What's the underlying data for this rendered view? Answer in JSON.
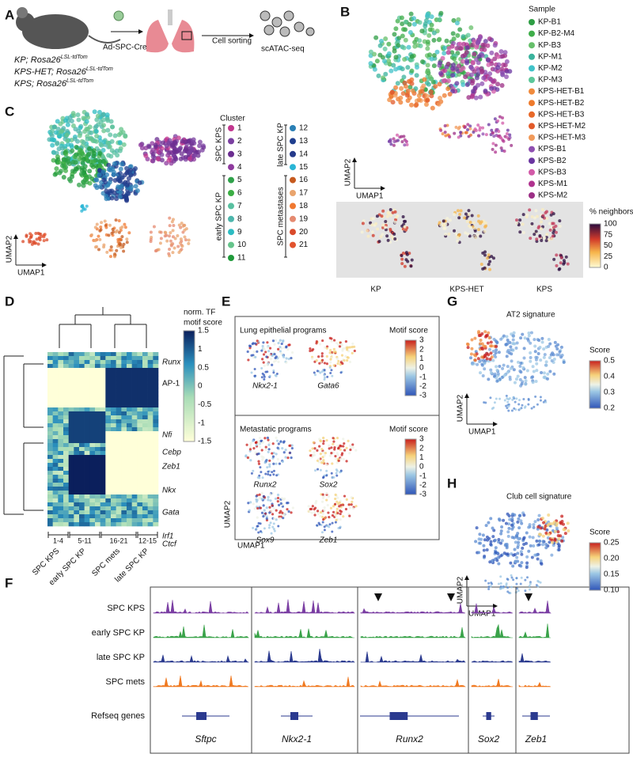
{
  "panel_labels": [
    "A",
    "B",
    "C",
    "D",
    "E",
    "F",
    "G",
    "H"
  ],
  "a": {
    "vector": "Ad-SPC-Cre",
    "step": "Cell sorting",
    "assay": "scATAC-seq",
    "genotypes": [
      {
        "name": "KP; Rosa26",
        "sup": "LSL-tdTom"
      },
      {
        "name": "KPS-HET; Rosa26",
        "sup": "LSL-tdTom"
      },
      {
        "name": "KPS; Rosa26",
        "sup": "LSL-tdTom"
      }
    ]
  },
  "b": {
    "legend_title": "Sample",
    "samples": [
      {
        "name": "KP-B1",
        "color": "#2e9e44"
      },
      {
        "name": "KP-B2-M4",
        "color": "#3fae4a"
      },
      {
        "name": "KP-B3",
        "color": "#66bf6a"
      },
      {
        "name": "KP-M1",
        "color": "#3bb39d"
      },
      {
        "name": "KP-M2",
        "color": "#40c2c8"
      },
      {
        "name": "KP-M3",
        "color": "#5cc79a"
      },
      {
        "name": "KPS-HET-B1",
        "color": "#f08a3c"
      },
      {
        "name": "KPS-HET-B2",
        "color": "#ee7a2c"
      },
      {
        "name": "KPS-HET-B3",
        "color": "#e8692a"
      },
      {
        "name": "KPS-HET-M2",
        "color": "#e25a2a"
      },
      {
        "name": "KPS-HET-M3",
        "color": "#f19a5a"
      },
      {
        "name": "KPS-B1",
        "color": "#8e4fb0"
      },
      {
        "name": "KPS-B2",
        "color": "#6a35a0"
      },
      {
        "name": "KPS-B3",
        "color": "#d25aa8"
      },
      {
        "name": "KPS-M1",
        "color": "#b0338f"
      },
      {
        "name": "KPS-M2",
        "color": "#9c2f86"
      }
    ],
    "x_axis": "UMAP1",
    "y_axis": "UMAP2",
    "neighbors_title": "% neighbors",
    "neighbors_ticks": [
      "100",
      "75",
      "50",
      "25",
      "0"
    ],
    "groups": [
      "KP",
      "KPS-HET",
      "KPS"
    ]
  },
  "c": {
    "legend_title": "Cluster",
    "clusters": [
      {
        "label": "1",
        "color": "#c2378f"
      },
      {
        "label": "2",
        "color": "#7a3fa0"
      },
      {
        "label": "3",
        "color": "#6b2d90"
      },
      {
        "label": "4",
        "color": "#8e3a9e"
      },
      {
        "label": "5",
        "color": "#2fa14a"
      },
      {
        "label": "6",
        "color": "#3cae44"
      },
      {
        "label": "7",
        "color": "#58c0a0"
      },
      {
        "label": "8",
        "color": "#4db6ac"
      },
      {
        "label": "9",
        "color": "#2dbcc2"
      },
      {
        "label": "10",
        "color": "#65c48b"
      },
      {
        "label": "11",
        "color": "#1f9a3a"
      },
      {
        "label": "12",
        "color": "#2a7fb5"
      },
      {
        "label": "13",
        "color": "#1f3f8f"
      },
      {
        "label": "14",
        "color": "#243a8a"
      },
      {
        "label": "15",
        "color": "#29b5d5"
      },
      {
        "label": "16",
        "color": "#c65a1e"
      },
      {
        "label": "17",
        "color": "#e9a46d"
      },
      {
        "label": "18",
        "color": "#f07830"
      },
      {
        "label": "19",
        "color": "#e58a70"
      },
      {
        "label": "20",
        "color": "#d94b2b"
      },
      {
        "label": "21",
        "color": "#e2532e"
      }
    ],
    "groups": [
      "SPC KPS",
      "early SPC KP",
      "late SPC KP",
      "SPC metastases"
    ],
    "x_axis": "UMAP1",
    "y_axis": "UMAP2"
  },
  "d": {
    "colorbar_title": [
      "norm. TF",
      "motif score"
    ],
    "colorbar_ticks": [
      "1.5",
      "1",
      "0.5",
      "0",
      "-0.5",
      "-1",
      "-1.5"
    ],
    "rows": [
      "Runx",
      "AP-1",
      "Nfi",
      "Cebp",
      "Zeb1",
      "Nkx",
      "Gata",
      "Irf1",
      "Ctcf"
    ],
    "column_ranges": [
      "1-4",
      "5-11",
      "16-21",
      "12-15"
    ],
    "column_groups": [
      "SPC KPS",
      "early SPC KP",
      "SPC mets",
      "late SPC KP"
    ]
  },
  "e": {
    "sections": [
      {
        "title": "Lung epithelial programs",
        "legend_title": "Motif score",
        "ticks": [
          "3",
          "2",
          "1",
          "0",
          "-1",
          "-2",
          "-3"
        ],
        "genes": [
          "Nkx2-1",
          "Gata6"
        ]
      },
      {
        "title": "Metastatic programs",
        "legend_title": "Motif score",
        "ticks": [
          "3",
          "2",
          "1",
          "0",
          "-1",
          "-2",
          "-3"
        ],
        "genes": [
          "Runx2",
          "Sox2",
          "Sox9",
          "Zeb1"
        ]
      }
    ],
    "x_axis": "UMAP1",
    "y_axis": "UMAP2"
  },
  "f": {
    "tracks": [
      {
        "name": "SPC KPS",
        "color": "#7b3fa3"
      },
      {
        "name": "early SPC KP",
        "color": "#3aa34a"
      },
      {
        "name": "late SPC KP",
        "color": "#2b3a8f"
      },
      {
        "name": "SPC mets",
        "color": "#f07a22"
      }
    ],
    "refseq": "Refseq genes",
    "genes": [
      "Sftpc",
      "Nkx2-1",
      "Runx2",
      "Sox2",
      "Zeb1"
    ]
  },
  "g": {
    "title": "AT2 signature",
    "legend_title": "Score",
    "ticks": [
      "0.5",
      "0.4",
      "0.3",
      "0.2"
    ],
    "x_axis": "UMAP1",
    "y_axis": "UMAP2"
  },
  "h": {
    "title": "Club cell signature",
    "legend_title": "Score",
    "ticks": [
      "0.25",
      "0.20",
      "0.15",
      "0.10"
    ],
    "x_axis": "UMAP1",
    "y_axis": "UMAP2"
  }
}
